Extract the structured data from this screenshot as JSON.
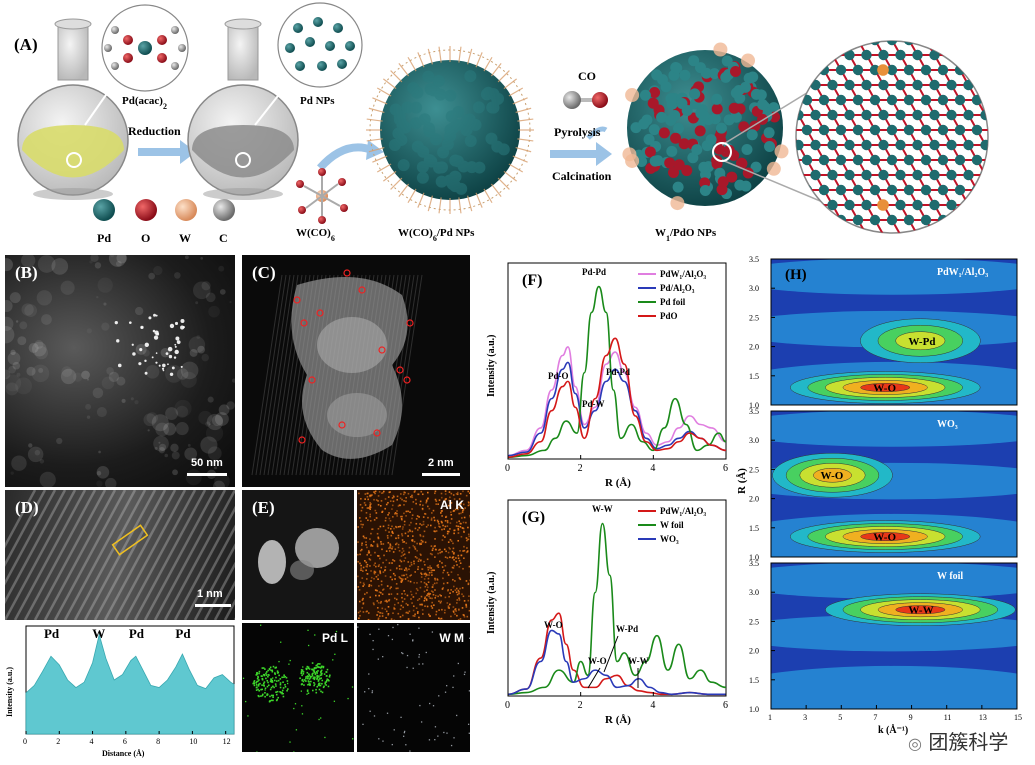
{
  "panel_A": {
    "label": "(A)",
    "pd_acac": "Pd(acac)",
    "pd_acac_sub": "2",
    "reduction": "Reduction",
    "pd_nps": "Pd NPs",
    "w_co6": "W(CO)",
    "w_co6_sub": "6",
    "w_co6_pd_nps_a": "W(CO)",
    "w_co6_pd_nps_sub": "6",
    "w_co6_pd_nps_b": "/Pd NPs",
    "co": "CO",
    "pyrolysis": "Pyrolysis",
    "calcination": "Calcination",
    "w1_pdo_a": "W",
    "w1_pdo_sub": "1",
    "w1_pdo_b": "/PdO NPs",
    "legend": [
      "Pd",
      "O",
      "W",
      "C"
    ],
    "colors": {
      "Pd": "#1f6b6e",
      "O": "#c0182a",
      "W": "#e8a878",
      "C": "#9a9a9a",
      "solution": "#d8dc6a",
      "arrow": "#9cc3e6"
    }
  },
  "panel_B": {
    "label": "(B)",
    "scale": "50 nm"
  },
  "panel_C": {
    "label": "(C)",
    "scale": "2 nm"
  },
  "panel_D": {
    "label": "(D)",
    "scale": "1 nm"
  },
  "panel_E": {
    "label": "(E)",
    "maps": [
      "Al K",
      "Pd L",
      "W M"
    ],
    "map_colors": [
      "#e8781a",
      "#3dd82a",
      "#cfd6e0"
    ]
  },
  "chart_data": [
    {
      "type": "line",
      "panel": "D-profile",
      "xlabel": "Distance (Å)",
      "ylabel": "Intensity (a.u.)",
      "xlim": [
        0,
        12.5
      ],
      "xticks": [
        0,
        2,
        4,
        6,
        8,
        10,
        12
      ],
      "peak_labels": [
        {
          "text": "Pd",
          "x": 1.5
        },
        {
          "text": "W",
          "x": 4.4
        },
        {
          "text": "Pd",
          "x": 6.6
        },
        {
          "text": "Pd",
          "x": 9.4
        }
      ],
      "x": [
        0,
        0.5,
        1.0,
        1.5,
        2.0,
        2.5,
        3.0,
        3.5,
        4.0,
        4.4,
        4.8,
        5.3,
        5.8,
        6.3,
        6.6,
        7.0,
        7.5,
        8.0,
        8.5,
        9.0,
        9.4,
        9.8,
        10.3,
        10.8,
        11.3,
        11.8,
        12.3,
        12.5
      ],
      "y": [
        0.38,
        0.45,
        0.58,
        0.72,
        0.64,
        0.5,
        0.43,
        0.48,
        0.66,
        0.92,
        0.7,
        0.5,
        0.55,
        0.68,
        0.72,
        0.6,
        0.45,
        0.43,
        0.5,
        0.62,
        0.74,
        0.6,
        0.45,
        0.42,
        0.52,
        0.55,
        0.48,
        0.46
      ]
    },
    {
      "type": "line",
      "panel": "F",
      "label": "(F)",
      "xlabel": "R (Å)",
      "ylabel": "Intensity (a.u.)",
      "xlim": [
        0,
        6
      ],
      "xticks": [
        0,
        2,
        4,
        6
      ],
      "legend_position": "top-right",
      "annotations": [
        "Pd-Pd",
        "Pd-O",
        "Pd-Pd",
        "Pd-W"
      ],
      "series": [
        {
          "name": "PdW₁/Al₂O₃",
          "color": "#e07ee0",
          "x": [
            0,
            0.5,
            0.9,
            1.2,
            1.5,
            1.65,
            1.85,
            2.1,
            2.4,
            2.7,
            2.95,
            3.2,
            3.5,
            3.8,
            4.1,
            4.4,
            4.7,
            5.0,
            5.3,
            5.6,
            6.0
          ],
          "y": [
            0.02,
            0.05,
            0.18,
            0.4,
            0.6,
            0.65,
            0.42,
            0.2,
            0.3,
            0.55,
            0.62,
            0.5,
            0.3,
            0.15,
            0.08,
            0.1,
            0.18,
            0.25,
            0.2,
            0.18,
            0.1
          ]
        },
        {
          "name": "Pd/Al₂O₃",
          "color": "#2a3ab8",
          "x": [
            0,
            0.5,
            0.9,
            1.2,
            1.5,
            1.65,
            1.85,
            2.1,
            2.4,
            2.7,
            2.95,
            3.2,
            3.5,
            3.8,
            4.1,
            4.4,
            4.7,
            5.0,
            5.3,
            5.6,
            6.0
          ],
          "y": [
            0.02,
            0.04,
            0.15,
            0.35,
            0.52,
            0.56,
            0.38,
            0.18,
            0.28,
            0.45,
            0.52,
            0.45,
            0.28,
            0.12,
            0.06,
            0.08,
            0.12,
            0.16,
            0.12,
            0.08,
            0.05
          ]
        },
        {
          "name": "Pd foil",
          "color": "#1a8a1a",
          "x": [
            0,
            0.5,
            1.0,
            1.3,
            1.6,
            1.9,
            2.1,
            2.3,
            2.5,
            2.7,
            2.9,
            3.1,
            3.4,
            3.7,
            4.0,
            4.3,
            4.6,
            4.9,
            5.2,
            5.5,
            5.8,
            6.0
          ],
          "y": [
            0.01,
            0.02,
            0.05,
            0.12,
            0.22,
            0.15,
            0.5,
            0.85,
            1.0,
            0.85,
            0.4,
            0.12,
            0.2,
            0.1,
            0.05,
            0.18,
            0.35,
            0.2,
            0.05,
            0.08,
            0.15,
            0.1
          ]
        },
        {
          "name": "PdO",
          "color": "#d41818",
          "x": [
            0,
            0.5,
            0.9,
            1.2,
            1.5,
            1.65,
            1.85,
            2.1,
            2.4,
            2.7,
            2.95,
            3.2,
            3.5,
            3.8,
            4.1,
            4.4,
            4.7,
            5.0,
            5.3,
            5.6,
            6.0
          ],
          "y": [
            0.01,
            0.03,
            0.1,
            0.28,
            0.42,
            0.45,
            0.3,
            0.12,
            0.35,
            0.6,
            0.7,
            0.55,
            0.25,
            0.1,
            0.05,
            0.06,
            0.1,
            0.15,
            0.12,
            0.08,
            0.05
          ]
        }
      ]
    },
    {
      "type": "line",
      "panel": "G",
      "label": "(G)",
      "xlabel": "R (Å)",
      "ylabel": "Intensity (a.u.)",
      "xlim": [
        0,
        6
      ],
      "xticks": [
        0,
        2,
        4,
        6
      ],
      "legend_position": "top-right",
      "annotations": [
        "W-W",
        "W-O",
        "W-Pd",
        "W-O",
        "W-W"
      ],
      "series": [
        {
          "name": "PdW₁/Al₂O₃",
          "color": "#d41818",
          "x": [
            0,
            0.5,
            0.9,
            1.2,
            1.4,
            1.6,
            1.8,
            2.1,
            2.4,
            2.7,
            3.0,
            3.3,
            3.6,
            3.9,
            4.2,
            4.5,
            5.0,
            5.5,
            6.0
          ],
          "y": [
            0.01,
            0.04,
            0.22,
            0.44,
            0.48,
            0.3,
            0.15,
            0.05,
            0.05,
            0.1,
            0.12,
            0.06,
            0.03,
            0.02,
            0.01,
            0.01,
            0.02,
            0.01,
            0.01
          ]
        },
        {
          "name": "W foil",
          "color": "#1a8a1a",
          "x": [
            0,
            0.5,
            1.0,
            1.4,
            1.8,
            2.0,
            2.2,
            2.4,
            2.6,
            2.8,
            3.0,
            3.2,
            3.5,
            3.8,
            4.1,
            4.4,
            4.7,
            5.0,
            5.3,
            5.6,
            6.0
          ],
          "y": [
            0.01,
            0.02,
            0.05,
            0.15,
            0.08,
            0.2,
            0.12,
            0.6,
            1.0,
            0.7,
            0.2,
            0.25,
            0.12,
            0.2,
            0.35,
            0.15,
            0.3,
            0.1,
            0.15,
            0.08,
            0.05
          ]
        },
        {
          "name": "WO₃",
          "color": "#2a3ab8",
          "x": [
            0,
            0.5,
            0.9,
            1.2,
            1.4,
            1.6,
            1.8,
            2.1,
            2.4,
            2.7,
            3.0,
            3.3,
            3.6,
            3.9,
            4.2,
            4.5,
            5.0,
            5.5,
            6.0
          ],
          "y": [
            0.01,
            0.04,
            0.2,
            0.38,
            0.36,
            0.2,
            0.08,
            0.1,
            0.15,
            0.12,
            0.05,
            0.06,
            0.1,
            0.05,
            0.02,
            0.01,
            0.02,
            0.01,
            0.01
          ]
        }
      ]
    },
    {
      "type": "heatmap",
      "panel": "H",
      "label": "(H)",
      "xlabel": "k (Å⁻¹)",
      "ylabel": "R (Å)",
      "xlim": [
        1,
        15
      ],
      "xticks": [
        1,
        3,
        5,
        7,
        9,
        11,
        13,
        15
      ],
      "ylim": [
        1.0,
        3.5
      ],
      "yticks": [
        1.0,
        1.5,
        2.0,
        2.5,
        3.0,
        3.5
      ],
      "subplots": [
        {
          "name": "PdW₁/Al₂O₃",
          "features": [
            {
              "label": "W-O",
              "k": 7.5,
              "R": 1.3,
              "strength": 1.0
            },
            {
              "label": "W-Pd",
              "k": 9.5,
              "R": 2.1,
              "strength": 0.45
            }
          ]
        },
        {
          "name": "WO₃",
          "features": [
            {
              "label": "W-O",
              "k": 7.5,
              "R": 1.35,
              "strength": 1.0
            },
            {
              "label": "W-O",
              "k": 4.5,
              "R": 2.4,
              "strength": 0.65
            }
          ]
        },
        {
          "name": "W foil",
          "features": [
            {
              "label": "W-W",
              "k": 9.5,
              "R": 2.7,
              "strength": 1.0
            }
          ]
        }
      ]
    }
  ],
  "watermark": "团簇科学"
}
